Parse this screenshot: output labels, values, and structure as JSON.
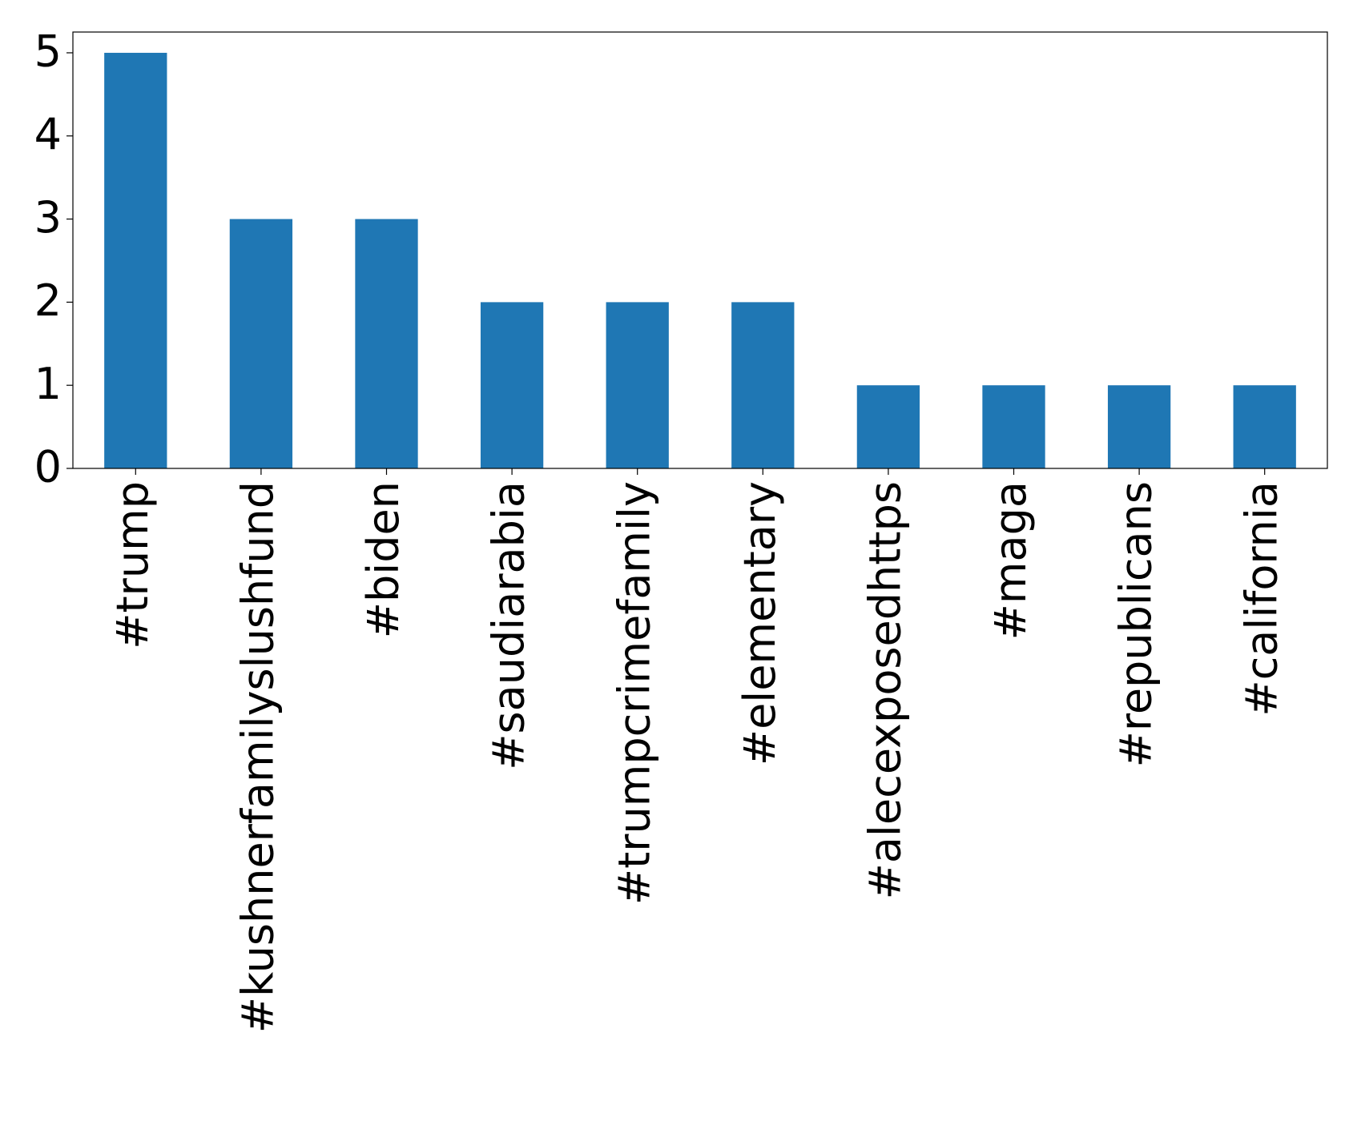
{
  "chart_data": {
    "type": "bar",
    "categories": [
      "#trump",
      "#kushnerfamilyslushfund",
      "#biden",
      "#saudiarabia",
      "#trumpcrimefamily",
      "#elementary",
      "#alecexposedhttps",
      "#maga",
      "#republicans",
      "#california"
    ],
    "values": [
      5,
      3,
      3,
      2,
      2,
      2,
      1,
      1,
      1,
      1
    ],
    "color": "#1f77b4",
    "ylim": [
      0,
      5.25
    ],
    "yticks": [
      0,
      1,
      2,
      3,
      4,
      5
    ],
    "grid": false
  }
}
